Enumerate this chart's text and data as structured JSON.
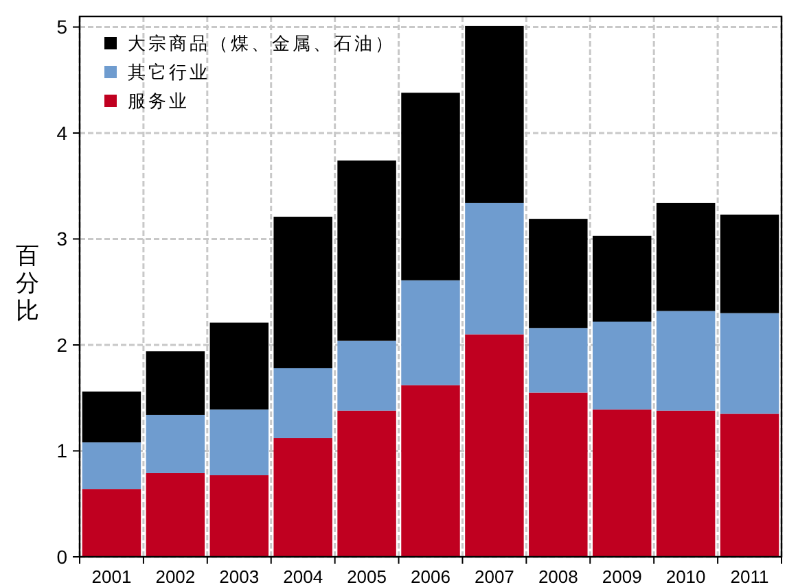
{
  "chart_data": {
    "type": "bar",
    "stacked": true,
    "ylabel": "百分比",
    "categories": [
      "2001",
      "2002",
      "2003",
      "2004",
      "2005",
      "2006",
      "2007",
      "2008",
      "2009",
      "2010",
      "2011"
    ],
    "series": [
      {
        "name": "服务业",
        "color": "#c00020",
        "values": [
          0.64,
          0.79,
          0.77,
          1.12,
          1.38,
          1.62,
          2.1,
          1.55,
          1.39,
          1.38,
          1.35
        ]
      },
      {
        "name": "其它行业",
        "color": "#6f9ccf",
        "values": [
          0.44,
          0.55,
          0.62,
          0.66,
          0.66,
          0.99,
          1.24,
          0.61,
          0.83,
          0.94,
          0.95
        ]
      },
      {
        "name": "大宗商品（煤、金属、石油）",
        "color": "#000000",
        "values": [
          0.48,
          0.6,
          0.82,
          1.43,
          1.7,
          1.77,
          1.67,
          1.03,
          0.81,
          1.02,
          0.93
        ]
      }
    ],
    "ylim": [
      0,
      5.1
    ],
    "yticks": [
      0,
      1,
      2,
      3,
      4,
      5
    ],
    "grid": true,
    "legend": "top left"
  }
}
